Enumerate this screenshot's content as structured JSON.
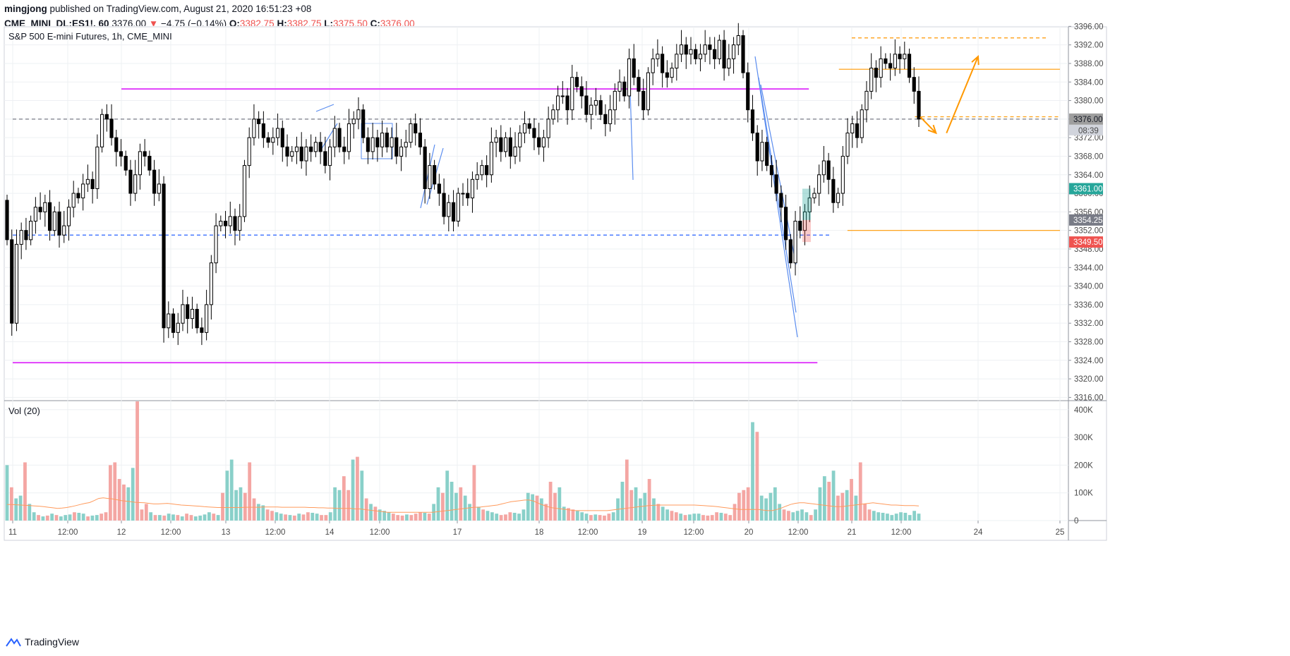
{
  "header": {
    "publisher": "mingjong",
    "published_text": "published on TradingView.com, August 21, 2020 16:51:23 +08",
    "symbol": "CME_MINI_DL:ES1!, 60",
    "last": "3376.00",
    "change_arrow": "▼",
    "change": "−4.75 (−0.14%)",
    "o_label": "O:",
    "o": "3382.75",
    "h_label": "H:",
    "h": "3382.75",
    "l_label": "L:",
    "l": "3375.50",
    "c_label": "C:",
    "c": "3376.00"
  },
  "footer": {
    "brand": "TradingView",
    "logo_icon": "tradingview-logo-icon"
  },
  "colors": {
    "up": "#26a69a",
    "down": "#ef5350",
    "magenta": "#e040fb",
    "orange": "#ff9800",
    "blue": "#2962ff",
    "candle": "#000000"
  },
  "chart_data": [
    {
      "type": "candlestick",
      "title": "S&P 500 E-mini Futures, 1h, CME_MINI",
      "y_axis": {
        "ticks": [
          "3396.00",
          "3392.00",
          "3388.00",
          "3384.00",
          "3380.00",
          "3376.00",
          "3372.00",
          "3368.00",
          "3364.00",
          "3360.00",
          "3356.00",
          "3352.00",
          "3348.00",
          "3344.00",
          "3340.00",
          "3336.00",
          "3332.00",
          "3328.00",
          "3324.00",
          "3320.00",
          "3316.00"
        ],
        "range": [
          3315.3,
          3395.9
        ]
      },
      "x_axis": {
        "ticks": [
          "11",
          "12:00",
          "12",
          "12:00",
          "13",
          "12:00",
          "14",
          "12:00",
          "17",
          "18",
          "12:00",
          "19",
          "12:00",
          "20",
          "12:00",
          "21",
          "12:00",
          "24",
          "25"
        ],
        "range": [
          "2020-08-11",
          "2020-08-25"
        ]
      },
      "price_labels": [
        {
          "value": 3376.0,
          "text": "3376.00",
          "color": "#9e9e9e",
          "text_color": "#131722"
        },
        {
          "value": 3361.0,
          "text": "3361.00",
          "color": "#26a69a",
          "text_color": "#ffffff"
        },
        {
          "value": 3354.25,
          "text": "3354.25",
          "color": "#787b86",
          "text_color": "#ffffff"
        },
        {
          "value": 3349.5,
          "text": "3349.50",
          "color": "#ef5350",
          "text_color": "#ffffff"
        }
      ],
      "countdown": "08:39",
      "horizontal_lines": [
        {
          "value": 3382.5,
          "color": "#e040fb",
          "style": "solid",
          "from": "2020-08-12",
          "to": "2020-08-20 14:00"
        },
        {
          "value": 3323.5,
          "color": "#e040fb",
          "style": "solid",
          "from": "2020-08-11",
          "to": "2020-08-20 16:00"
        },
        {
          "value": 3351.0,
          "color": "#2962ff",
          "style": "dashed",
          "from": "2020-08-11",
          "to": "2020-08-20 19:00"
        },
        {
          "value": 3376.0,
          "color": "#787b86",
          "style": "dashed",
          "from": "2020-08-11",
          "to": "2020-08-25"
        },
        {
          "value": 3386.75,
          "color": "#ff9800",
          "style": "solid",
          "from": "2020-08-20 21:00",
          "to": "2020-08-25"
        },
        {
          "value": 3352.0,
          "color": "#ff9800",
          "style": "solid",
          "from": "2020-08-20 23:00",
          "to": "2020-08-25"
        },
        {
          "value": 3393.5,
          "color": "#ff9800",
          "style": "dashed",
          "from": "2020-08-21 00:00",
          "to": "2020-08-24 20:00"
        },
        {
          "value": 3376.5,
          "color": "#ff9800",
          "style": "dashed",
          "from": "2020-08-21 12:00",
          "to": "2020-08-25"
        }
      ],
      "arrows": [
        {
          "points": [
            [
              "2020-08-21 13:00",
              3376.5
            ],
            [
              "2020-08-21 16:00",
              3373.0
            ]
          ],
          "color": "#ff9800"
        },
        {
          "points": [
            [
              "2020-08-21 18:00",
              3373.0
            ],
            [
              "2020-08-22 02:00",
              3389.5
            ]
          ],
          "color": "#ff9800"
        }
      ],
      "series": [
        {
          "name": "candles",
          "interval": "1h",
          "start": "2020-08-11 00:00",
          "open": 3358.5,
          "close_path": [
            3350,
            3332,
            3349,
            3352,
            3350,
            3354,
            3357,
            3356,
            3358,
            3352,
            3356,
            3351,
            3353,
            3357,
            3360,
            3359,
            3362,
            3363,
            3361,
            3370,
            3377,
            3376,
            3372,
            3369,
            3368,
            3365,
            3360,
            3364,
            3369,
            3368,
            3365,
            3360,
            3362,
            3331,
            3334,
            3330,
            3332,
            3336,
            3333,
            3335,
            3331,
            3330,
            3336,
            3345,
            3353,
            3354,
            3353,
            3355,
            3352,
            3355,
            3366,
            3372,
            3376,
            3375,
            3372,
            3371,
            3372,
            3374,
            3370,
            3368,
            3369,
            3370,
            3367,
            3370,
            3369,
            3371,
            3369,
            3366,
            3370,
            3374,
            3370,
            3369,
            3375,
            3376,
            3378,
            3372,
            3369,
            3372,
            3370,
            3373,
            3370,
            3372,
            3368,
            3370,
            3371,
            3375,
            3373,
            3370,
            3361,
            3366,
            3362,
            3360,
            3355,
            3358,
            3354,
            3360,
            3360,
            3359,
            3363,
            3364,
            3366,
            3364,
            3371,
            3372,
            3369,
            3372,
            3368,
            3370,
            3373,
            3375,
            3374,
            3372,
            3370,
            3372,
            3376,
            3378,
            3381,
            3381,
            3378,
            3385,
            3383,
            3381,
            3377,
            3379,
            3380,
            3377,
            3375,
            3378,
            3382,
            3384,
            3381,
            3389,
            3385,
            3382,
            3378,
            3386,
            3389,
            3390,
            3386,
            3385,
            3387,
            3390,
            3392,
            3390,
            3391,
            3389,
            3390,
            3392,
            3391,
            3389,
            3393,
            3387,
            3389,
            3392,
            3394,
            3386,
            3378,
            3373,
            3367,
            3371,
            3366,
            3364,
            3360,
            3357,
            3350,
            3345,
            3354,
            3352,
            3356,
            3359,
            3360,
            3364,
            3367,
            3363,
            3358,
            3360,
            3368,
            3373,
            3375,
            3372,
            3378,
            3382,
            3387,
            3385,
            3389,
            3388,
            3387,
            3390,
            3389,
            3390,
            3385,
            3382,
            3376
          ]
        }
      ]
    },
    {
      "type": "bar",
      "title": "Vol (20)",
      "y_axis": {
        "ticks": [
          "400K",
          "300K",
          "200K",
          "100K",
          "0"
        ],
        "range": [
          0,
          430000
        ]
      },
      "x_axis": {
        "range": [
          "2020-08-11",
          "2020-08-25"
        ]
      },
      "series": [
        {
          "name": "volume",
          "values_k": [
            200,
            120,
            80,
            90,
            210,
            60,
            30,
            20,
            15,
            18,
            25,
            20,
            15,
            20,
            22,
            30,
            28,
            25,
            15,
            18,
            20,
            25,
            30,
            200,
            210,
            150,
            130,
            120,
            190,
            430,
            40,
            60,
            30,
            20,
            20,
            18,
            25,
            22,
            20,
            15,
            25,
            20,
            15,
            18,
            22,
            30,
            25,
            20,
            100,
            180,
            220,
            110,
            120,
            100,
            210,
            80,
            60,
            55,
            40,
            35,
            30,
            25,
            22,
            20,
            18,
            25,
            22,
            30,
            28,
            25,
            20,
            20,
            30,
            120,
            110,
            160,
            110,
            220,
            230,
            180,
            80,
            60,
            50,
            40,
            35,
            30,
            25,
            20,
            18,
            22,
            20,
            25,
            30,
            28,
            25,
            60,
            120,
            100,
            180,
            140,
            100,
            120,
            90,
            60,
            200,
            50,
            40,
            35,
            30,
            25,
            20,
            22,
            30,
            28,
            25,
            40,
            100,
            95,
            90,
            80,
            60,
            140,
            100,
            120,
            50,
            45,
            40,
            35,
            30,
            25,
            20,
            22,
            20,
            18,
            25,
            30,
            80,
            140,
            220,
            110,
            120,
            80,
            100,
            150,
            80,
            60,
            50,
            40,
            35,
            30,
            25,
            20,
            22,
            25,
            25,
            20,
            18,
            20,
            30,
            28,
            25,
            20,
            60,
            100,
            110,
            120,
            355,
            320,
            90,
            80,
            100,
            120,
            60,
            40,
            35,
            30,
            35,
            40,
            30,
            20,
            40,
            120,
            160,
            140,
            180,
            90,
            100,
            110,
            150,
            90,
            210,
            60,
            40,
            35,
            30,
            28,
            25,
            20,
            25,
            30,
            28,
            20,
            35,
            25
          ]
        },
        {
          "name": "ma",
          "values_k": [
            58,
            58,
            57,
            56,
            55,
            54,
            53,
            52,
            50,
            48,
            46,
            44,
            45,
            47,
            50,
            54,
            58,
            62,
            65,
            72,
            80,
            82,
            80,
            78,
            75,
            72,
            70,
            68,
            66,
            65,
            64,
            62,
            60,
            60,
            61,
            62,
            60,
            58,
            56,
            55,
            54,
            53,
            52,
            50,
            49,
            48,
            47,
            47,
            47,
            47,
            47,
            47,
            48,
            48,
            48,
            48,
            49,
            49,
            49,
            49,
            48,
            48,
            48,
            48,
            48,
            48,
            47,
            47,
            46,
            46,
            45,
            45,
            44,
            44,
            44,
            44,
            42,
            42,
            40,
            38,
            36,
            34,
            32,
            30,
            30,
            30,
            30,
            30,
            30,
            30,
            30,
            30,
            30,
            30,
            32,
            34,
            36,
            38,
            40,
            42,
            44,
            46,
            48,
            48,
            50,
            52,
            54,
            56,
            60,
            64,
            68,
            70,
            72,
            74,
            74,
            70,
            62,
            56,
            50,
            46,
            44,
            42,
            40,
            38,
            36,
            36,
            36,
            36,
            36,
            36,
            36,
            36,
            38,
            40,
            42,
            44,
            46,
            48,
            50,
            52,
            54,
            55,
            56,
            56,
            56,
            56,
            56,
            56,
            56,
            56,
            56,
            55,
            54,
            53,
            52,
            50,
            48,
            46,
            44,
            42,
            40,
            40,
            40,
            40,
            40,
            38,
            36,
            36,
            40,
            45,
            52,
            58,
            62,
            64,
            64,
            62,
            60,
            58,
            56,
            54,
            52,
            50,
            50,
            52,
            54,
            56,
            58,
            60,
            62,
            64,
            62,
            60,
            58,
            56,
            56,
            55,
            54,
            54,
            54,
            53
          ]
        }
      ]
    }
  ]
}
